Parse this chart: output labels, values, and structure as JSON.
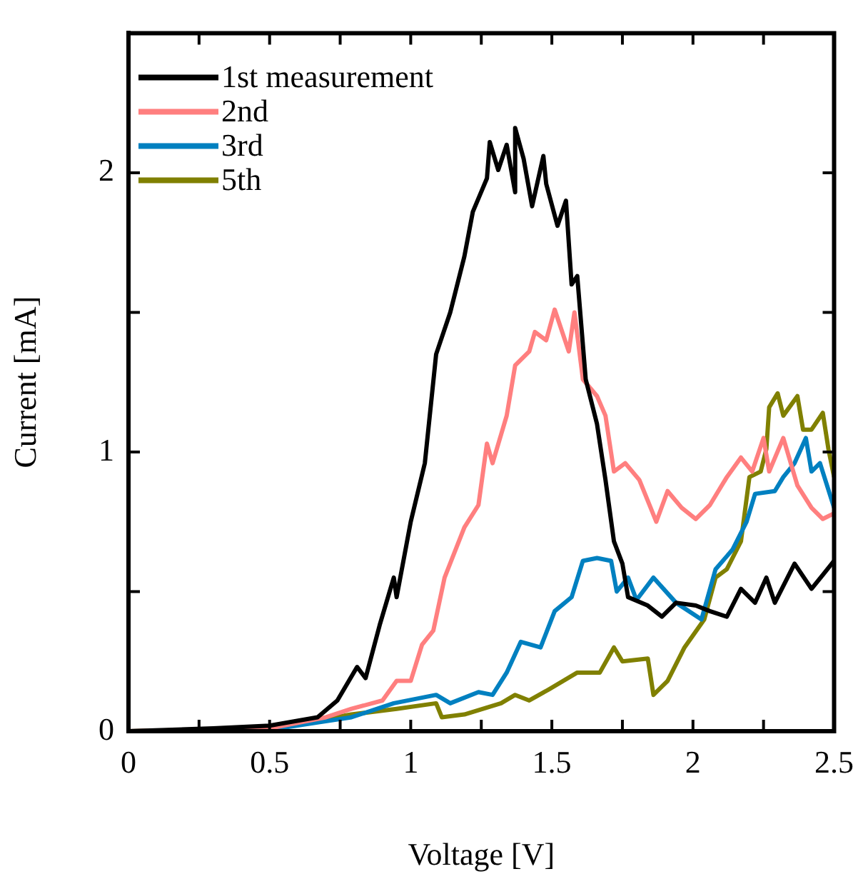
{
  "chart_data": {
    "type": "line",
    "xlabel": "Voltage [V]",
    "ylabel": "Current [mA]",
    "xlim": [
      0,
      2.5
    ],
    "ylim": [
      0,
      2.5
    ],
    "xticks": [
      0,
      {
        "value": 0.25,
        "label": null
      },
      0.5,
      {
        "value": 0.75,
        "label": null
      },
      1,
      {
        "value": 1.25,
        "label": null
      },
      1.5,
      {
        "value": 1.75,
        "label": null
      },
      2,
      {
        "value": 2.25,
        "label": null
      },
      2.5
    ],
    "yticks": [
      0,
      {
        "value": 0.5,
        "label": null
      },
      1,
      {
        "value": 1.5,
        "label": null
      },
      2
    ],
    "grid": false,
    "legend": "top left",
    "marker": "none",
    "line_style": "solid",
    "series": [
      {
        "name": "1st measurement",
        "color": "#000000",
        "x": [
          0,
          0.3,
          0.5,
          0.67,
          0.74,
          0.81,
          0.84,
          0.89,
          0.94,
          0.95,
          1.0,
          1.05,
          1.09,
          1.14,
          1.19,
          1.22,
          1.27,
          1.28,
          1.31,
          1.34,
          1.37,
          1.37,
          1.4,
          1.43,
          1.47,
          1.48,
          1.52,
          1.55,
          1.57,
          1.59,
          1.62,
          1.66,
          1.69,
          1.72,
          1.75,
          1.77,
          1.84,
          1.89,
          1.94,
          2.01,
          2.06,
          2.12,
          2.17,
          2.22,
          2.26,
          2.29,
          2.36,
          2.42,
          2.46,
          2.5
        ],
        "values": [
          0,
          0.01,
          0.02,
          0.05,
          0.11,
          0.23,
          0.19,
          0.38,
          0.55,
          0.48,
          0.75,
          0.96,
          1.35,
          1.5,
          1.7,
          1.86,
          1.98,
          2.11,
          2.01,
          2.1,
          1.93,
          2.16,
          2.05,
          1.88,
          2.06,
          1.96,
          1.81,
          1.9,
          1.6,
          1.63,
          1.26,
          1.1,
          0.9,
          0.68,
          0.6,
          0.48,
          0.45,
          0.41,
          0.46,
          0.45,
          0.43,
          0.41,
          0.51,
          0.46,
          0.55,
          0.46,
          0.6,
          0.51,
          0.56,
          0.61
        ]
      },
      {
        "name": "2nd",
        "color": "#ff7f7f",
        "x": [
          0,
          0.5,
          0.7,
          0.79,
          0.9,
          0.95,
          1.0,
          1.04,
          1.08,
          1.12,
          1.19,
          1.24,
          1.27,
          1.29,
          1.34,
          1.37,
          1.42,
          1.44,
          1.48,
          1.51,
          1.56,
          1.58,
          1.61,
          1.66,
          1.69,
          1.72,
          1.76,
          1.81,
          1.87,
          1.91,
          1.96,
          2.01,
          2.06,
          2.12,
          2.17,
          2.21,
          2.25,
          2.27,
          2.32,
          2.37,
          2.42,
          2.46,
          2.5
        ],
        "values": [
          0,
          0.01,
          0.05,
          0.08,
          0.11,
          0.18,
          0.18,
          0.31,
          0.36,
          0.55,
          0.73,
          0.81,
          1.03,
          0.96,
          1.13,
          1.31,
          1.36,
          1.43,
          1.4,
          1.51,
          1.36,
          1.5,
          1.26,
          1.2,
          1.13,
          0.93,
          0.96,
          0.9,
          0.75,
          0.86,
          0.8,
          0.76,
          0.81,
          0.91,
          0.98,
          0.93,
          1.05,
          0.93,
          1.05,
          0.88,
          0.8,
          0.76,
          0.78
        ]
      },
      {
        "name": "3rd",
        "color": "#0080c0",
        "x": [
          0,
          0.5,
          0.79,
          0.94,
          1.09,
          1.14,
          1.24,
          1.29,
          1.34,
          1.39,
          1.46,
          1.51,
          1.57,
          1.61,
          1.66,
          1.71,
          1.73,
          1.77,
          1.8,
          1.86,
          1.94,
          2.03,
          2.08,
          2.14,
          2.19,
          2.22,
          2.29,
          2.32,
          2.36,
          2.4,
          2.42,
          2.45,
          2.5
        ],
        "values": [
          0,
          0.005,
          0.05,
          0.1,
          0.13,
          0.1,
          0.14,
          0.13,
          0.21,
          0.32,
          0.3,
          0.43,
          0.48,
          0.61,
          0.62,
          0.61,
          0.5,
          0.55,
          0.47,
          0.55,
          0.46,
          0.4,
          0.58,
          0.65,
          0.75,
          0.85,
          0.86,
          0.91,
          0.96,
          1.05,
          0.93,
          0.96,
          0.8
        ]
      },
      {
        "name": "5th",
        "color": "#808000",
        "x": [
          0,
          0.5,
          0.79,
          0.95,
          1.09,
          1.11,
          1.19,
          1.32,
          1.37,
          1.42,
          1.49,
          1.59,
          1.67,
          1.72,
          1.75,
          1.84,
          1.86,
          1.91,
          1.97,
          2.04,
          2.08,
          2.12,
          2.17,
          2.2,
          2.24,
          2.26,
          2.27,
          2.3,
          2.32,
          2.37,
          2.39,
          2.42,
          2.46,
          2.48,
          2.5
        ],
        "values": [
          0,
          0.01,
          0.06,
          0.08,
          0.1,
          0.05,
          0.06,
          0.1,
          0.13,
          0.11,
          0.15,
          0.21,
          0.21,
          0.3,
          0.25,
          0.26,
          0.13,
          0.18,
          0.3,
          0.4,
          0.55,
          0.58,
          0.68,
          0.91,
          0.93,
          1.01,
          1.16,
          1.21,
          1.13,
          1.2,
          1.08,
          1.08,
          1.14,
          1.01,
          0.91
        ]
      }
    ]
  }
}
